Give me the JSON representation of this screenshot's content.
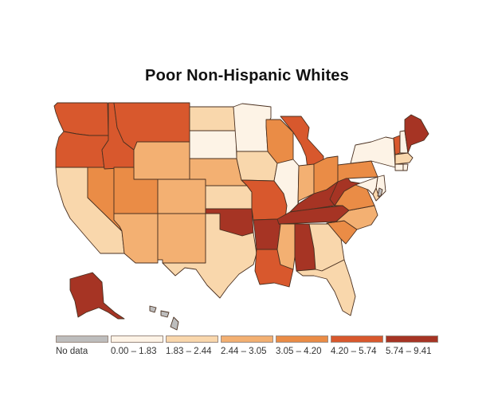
{
  "title": "Poor Non-Hispanic Whites",
  "legend": {
    "items": [
      {
        "label": "No data",
        "color": "#bdbdbd"
      },
      {
        "label": "0.00 – 1.83",
        "color": "#fdf3e6"
      },
      {
        "label": "1.83 – 2.44",
        "color": "#f9d7ac"
      },
      {
        "label": "2.44 – 3.05",
        "color": "#f3b072"
      },
      {
        "label": "3.05 – 4.20",
        "color": "#ea8c46"
      },
      {
        "label": "4.20 – 5.74",
        "color": "#d8582d"
      },
      {
        "label": "5.74 – 9.41",
        "color": "#a63424"
      }
    ]
  },
  "states": [
    {
      "code": "WA",
      "bin": 5
    },
    {
      "code": "OR",
      "bin": 5
    },
    {
      "code": "CA",
      "bin": 2
    },
    {
      "code": "NV",
      "bin": 4
    },
    {
      "code": "ID",
      "bin": 5
    },
    {
      "code": "MT",
      "bin": 5
    },
    {
      "code": "WY",
      "bin": 3
    },
    {
      "code": "UT",
      "bin": 4
    },
    {
      "code": "AZ",
      "bin": 3
    },
    {
      "code": "CO",
      "bin": 3
    },
    {
      "code": "NM",
      "bin": 3
    },
    {
      "code": "ND",
      "bin": 2
    },
    {
      "code": "SD",
      "bin": 1
    },
    {
      "code": "NE",
      "bin": 3
    },
    {
      "code": "KS",
      "bin": 2
    },
    {
      "code": "OK",
      "bin": 6
    },
    {
      "code": "TX",
      "bin": 2
    },
    {
      "code": "MN",
      "bin": 1
    },
    {
      "code": "IA",
      "bin": 2
    },
    {
      "code": "MO",
      "bin": 5
    },
    {
      "code": "AR",
      "bin": 6
    },
    {
      "code": "LA",
      "bin": 5
    },
    {
      "code": "WI",
      "bin": 4
    },
    {
      "code": "IL",
      "bin": 1
    },
    {
      "code": "MI",
      "bin": 5
    },
    {
      "code": "IN",
      "bin": 3
    },
    {
      "code": "OH",
      "bin": 4
    },
    {
      "code": "KY",
      "bin": 6
    },
    {
      "code": "TN",
      "bin": 6
    },
    {
      "code": "MS",
      "bin": 3
    },
    {
      "code": "AL",
      "bin": 6
    },
    {
      "code": "GA",
      "bin": 2
    },
    {
      "code": "FL",
      "bin": 2
    },
    {
      "code": "SC",
      "bin": 4
    },
    {
      "code": "NC",
      "bin": 3
    },
    {
      "code": "VA",
      "bin": 4
    },
    {
      "code": "WV",
      "bin": 6
    },
    {
      "code": "PA",
      "bin": 4
    },
    {
      "code": "NY",
      "bin": 1
    },
    {
      "code": "VT",
      "bin": 5
    },
    {
      "code": "NH",
      "bin": 1
    },
    {
      "code": "ME",
      "bin": 6
    },
    {
      "code": "MA",
      "bin": 2
    },
    {
      "code": "CT",
      "bin": 1
    },
    {
      "code": "RI",
      "bin": 1
    },
    {
      "code": "NJ",
      "bin": 1
    },
    {
      "code": "DE",
      "bin": 2
    },
    {
      "code": "MD",
      "bin": 1
    },
    {
      "code": "DC",
      "bin": 0
    },
    {
      "code": "AK",
      "bin": 6
    },
    {
      "code": "HI",
      "bin": 0
    }
  ]
}
